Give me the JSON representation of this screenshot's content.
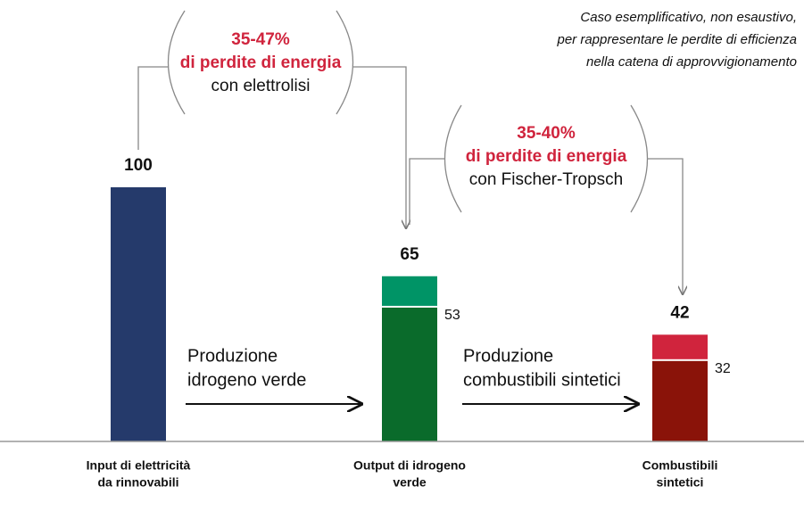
{
  "chart_data": {
    "type": "overlap_bar",
    "note": [
      "Caso esemplificativo, non esaustivo,",
      "per rappresentare le perdite di efficienza",
      "nella catena di approvvigionamento"
    ],
    "categories": [
      [
        "Input di elettricità",
        "da rinnovabili"
      ],
      [
        "Output di idrogeno",
        "verde"
      ],
      [
        "Combustibili",
        "sintetici"
      ]
    ],
    "totals": [
      100,
      65,
      42
    ],
    "totals_colors": [
      "#253a6b",
      "#009466",
      "#d0243d"
    ],
    "inner": [
      null,
      53,
      32
    ],
    "inner_colors": [
      null,
      "#0a6b2b",
      "#8a1309"
    ],
    "ylim": [
      0,
      100
    ],
    "highlight_color": "#d0243d",
    "annotations": [
      {
        "highlight": [
          "35-47%",
          "di perdite di energia"
        ],
        "text": "con elettrolisi"
      },
      {
        "highlight": [
          "35-40%",
          "di perdite di energia"
        ],
        "text": "con Fischer-Tropsch"
      }
    ],
    "steps": [
      [
        "Produzione",
        "idrogeno verde"
      ],
      [
        "Produzione",
        "combustibili sintetici"
      ]
    ]
  }
}
